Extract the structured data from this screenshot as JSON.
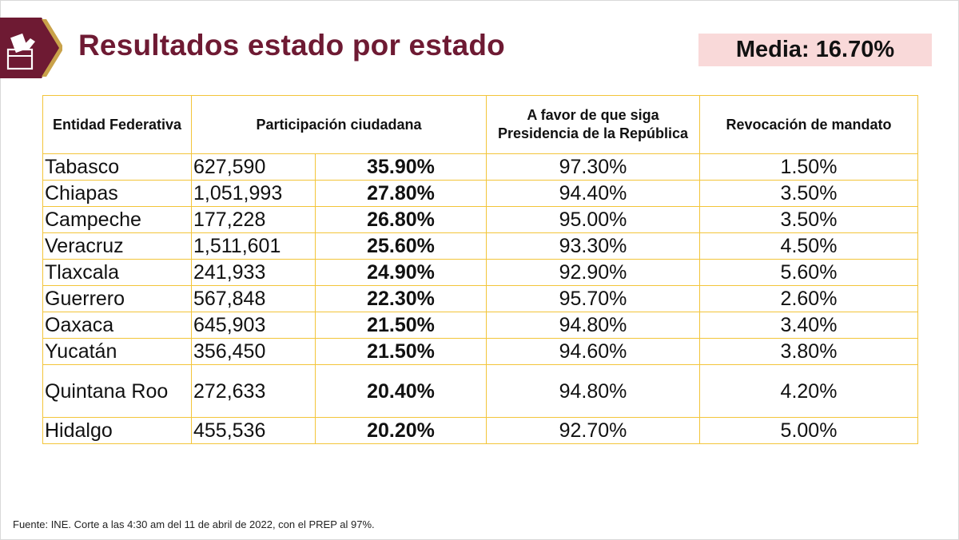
{
  "header": {
    "title": "Resultados estado por estado",
    "media_label": "Media: 16.70%",
    "logo_icon": "ballot-box-icon",
    "brand_color": "#6e1a33",
    "accent_color": "#f9d9d9"
  },
  "table": {
    "headers": {
      "entity": "Entidad Federativa",
      "participation": "Participación ciudadana",
      "favor": "A favor de que siga Presidencia de la República",
      "revocation": "Revocación de mandato"
    },
    "border_color": "#f3c53a",
    "rows": [
      {
        "entity": "Tabasco",
        "count": "627,590",
        "participation": "35.90%",
        "favor": "97.30%",
        "revocation": "1.50%"
      },
      {
        "entity": "Chiapas",
        "count": "1,051,993",
        "participation": "27.80%",
        "favor": "94.40%",
        "revocation": "3.50%"
      },
      {
        "entity": "Campeche",
        "count": "177,228",
        "participation": "26.80%",
        "favor": "95.00%",
        "revocation": "3.50%"
      },
      {
        "entity": "Veracruz",
        "count": "1,511,601",
        "participation": "25.60%",
        "favor": "93.30%",
        "revocation": "4.50%"
      },
      {
        "entity": "Tlaxcala",
        "count": "241,933",
        "participation": "24.90%",
        "favor": "92.90%",
        "revocation": "5.60%"
      },
      {
        "entity": "Guerrero",
        "count": "567,848",
        "participation": "22.30%",
        "favor": "95.70%",
        "revocation": "2.60%"
      },
      {
        "entity": "Oaxaca",
        "count": "645,903",
        "participation": "21.50%",
        "favor": "94.80%",
        "revocation": "3.40%"
      },
      {
        "entity": "Yucatán",
        "count": "356,450",
        "participation": "21.50%",
        "favor": "94.60%",
        "revocation": "3.80%"
      },
      {
        "entity": "Quintana Roo",
        "count": "272,633",
        "participation": "20.40%",
        "favor": "94.80%",
        "revocation": "4.20%"
      },
      {
        "entity": "Hidalgo",
        "count": "455,536",
        "participation": "20.20%",
        "favor": "92.70%",
        "revocation": "5.00%"
      }
    ]
  },
  "footer": {
    "source": "Fuente: INE. Corte a las 4:30 am del 11 de abril de 2022, con el PREP al 97%."
  }
}
